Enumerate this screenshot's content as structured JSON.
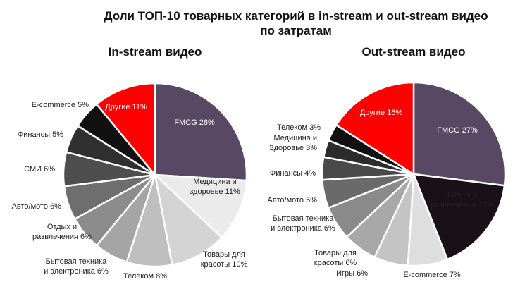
{
  "title_line1": "Доли ТОП-10 товарных категорий в in-stream и out-stream видео",
  "title_line2": "по затратам",
  "chart_data": [
    {
      "type": "pie",
      "title": "In-stream видео",
      "slices": [
        {
          "label": "FMCG",
          "value": 26,
          "color": "#594863",
          "text_color": "#ffffff",
          "label_lines": [
            "FMCG 26%"
          ]
        },
        {
          "label": "Медицина и здоровье",
          "value": 11,
          "color": "#ebebeb",
          "text_color": "#222222",
          "label_lines": [
            "Медицина и",
            "здоровье 11%"
          ]
        },
        {
          "label": "Товары для красоты",
          "value": 10,
          "color": "#d4d4d4",
          "text_color": "#222222",
          "label_lines": [
            "Товары для",
            "красоты 10%"
          ]
        },
        {
          "label": "Телеком",
          "value": 8,
          "color": "#bfbfbf",
          "text_color": "#222222",
          "label_lines": [
            "Телеком 8%"
          ]
        },
        {
          "label": "Бытовая техника и электроника",
          "value": 6,
          "color": "#a5a5a5",
          "text_color": "#222222",
          "label_lines": [
            "Бытовая техника",
            "и электроника 6%"
          ]
        },
        {
          "label": "Отдых и развлечения",
          "value": 6,
          "color": "#8c8c8c",
          "text_color": "#222222",
          "label_lines": [
            "Отдых и",
            "развлечения 6%"
          ]
        },
        {
          "label": "Авто/мото",
          "value": 6,
          "color": "#6e6e6e",
          "text_color": "#222222",
          "label_lines": [
            "Авто/мото 6%"
          ]
        },
        {
          "label": "СМИ",
          "value": 6,
          "color": "#4e4e4e",
          "text_color": "#222222",
          "label_lines": [
            "СМИ 6%"
          ]
        },
        {
          "label": "Финансы",
          "value": 5,
          "color": "#303030",
          "text_color": "#222222",
          "label_lines": [
            "Финансы 5%"
          ]
        },
        {
          "label": "E-commerce",
          "value": 5,
          "color": "#111111",
          "text_color": "#222222",
          "label_lines": [
            "E-commerce 5%"
          ]
        },
        {
          "label": "Другие",
          "value": 11,
          "color": "#ff0000",
          "text_color": "#ffffff",
          "label_lines": [
            "Другие 11%"
          ]
        }
      ]
    },
    {
      "type": "pie",
      "title": "Out-stream видео",
      "slices": [
        {
          "label": "FMCG",
          "value": 27,
          "color": "#594863",
          "text_color": "#ffffff",
          "label_lines": [
            "FMCG 27%"
          ]
        },
        {
          "label": "Отдых и развлечения",
          "value": 17,
          "color": "#1a1118",
          "text_color": "#222222",
          "label_lines": [
            "Отдых и",
            "развлечения 17%"
          ]
        },
        {
          "label": "E-commerce",
          "value": 7,
          "color": "#dedede",
          "text_color": "#222222",
          "label_lines": [
            "E-commerce 7%"
          ]
        },
        {
          "label": "Игры",
          "value": 6,
          "color": "#c4c4c4",
          "text_color": "#222222",
          "label_lines": [
            "Игры 6%"
          ]
        },
        {
          "label": "Товары для красоты",
          "value": 6,
          "color": "#a8a8a8",
          "text_color": "#222222",
          "label_lines": [
            "Товары для",
            "красоты 6%"
          ]
        },
        {
          "label": "Бытовая техника и электроника",
          "value": 6,
          "color": "#8a8a8a",
          "text_color": "#222222",
          "label_lines": [
            "Бытовая техника",
            "и электроника 6%"
          ]
        },
        {
          "label": "Авто/мото",
          "value": 5,
          "color": "#6a6a6a",
          "text_color": "#222222",
          "label_lines": [
            "Авто/мото 5%"
          ]
        },
        {
          "label": "Финансы",
          "value": 4,
          "color": "#4a4a4a",
          "text_color": "#222222",
          "label_lines": [
            "Финансы 4%"
          ]
        },
        {
          "label": "Медицина и Здоровье",
          "value": 3,
          "color": "#2c2c2c",
          "text_color": "#222222",
          "label_lines": [
            "Медицина и",
            "Здоровье 3%"
          ]
        },
        {
          "label": "Телеком",
          "value": 3,
          "color": "#111111",
          "text_color": "#222222",
          "label_lines": [
            "Телеком 3%"
          ]
        },
        {
          "label": "Другие",
          "value": 16,
          "color": "#ff0000",
          "text_color": "#ffffff",
          "label_lines": [
            "Другие 16%"
          ]
        }
      ]
    }
  ]
}
